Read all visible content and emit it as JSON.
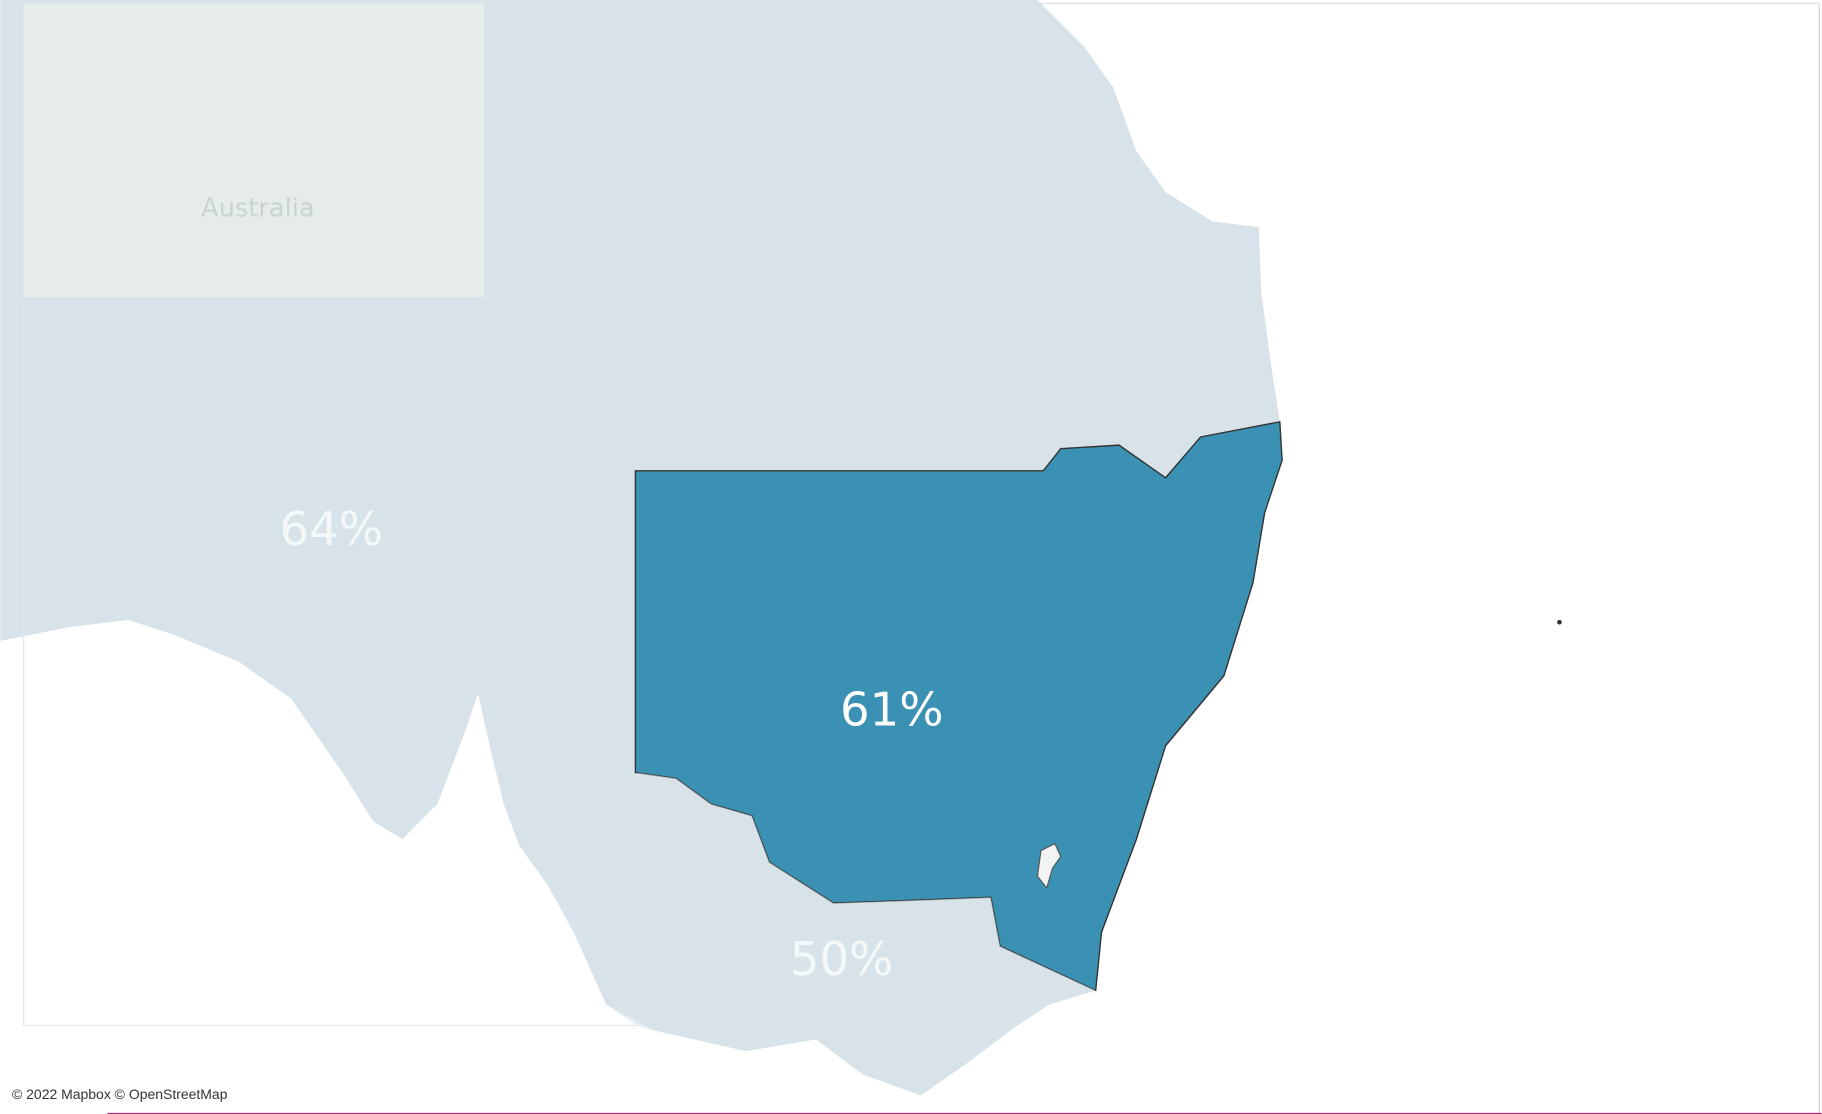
{
  "chart_data": {
    "type": "map",
    "values": [
      64,
      61,
      50
    ],
    "value_labels": [
      "64%",
      "61%",
      "50%"
    ],
    "selected": 1,
    "color": "#3a91b3",
    "base_color": "#d7e3e8",
    "annotations": [
      "Australia"
    ],
    "attribution": "© 2022 Mapbox © OpenStreetMap"
  }
}
